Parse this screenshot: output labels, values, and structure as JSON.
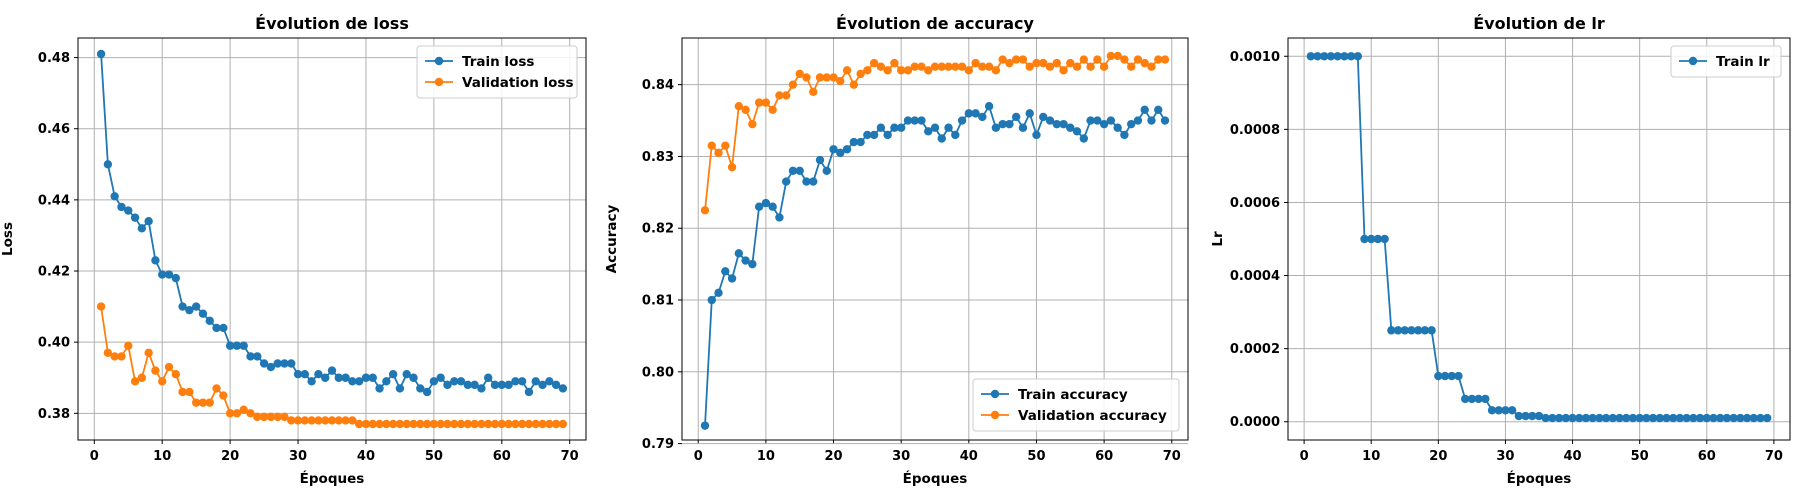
{
  "chart_data": [
    {
      "type": "line",
      "title": "Évolution de loss",
      "xlabel": "Époques",
      "ylabel": "Loss",
      "xlim": [
        -2.4,
        72.4
      ],
      "ylim": [
        0.3725,
        0.4855
      ],
      "xticks": [
        0,
        10,
        20,
        30,
        40,
        50,
        60,
        70
      ],
      "yticks": [
        0.38,
        0.4,
        0.42,
        0.44,
        0.46,
        0.48
      ],
      "ytick_labels": [
        "0.38",
        "0.40",
        "0.42",
        "0.44",
        "0.46",
        "0.48"
      ],
      "grid": true,
      "legend_position": "top-right",
      "x": [
        1,
        2,
        3,
        4,
        5,
        6,
        7,
        8,
        9,
        10,
        11,
        12,
        13,
        14,
        15,
        16,
        17,
        18,
        19,
        20,
        21,
        22,
        23,
        24,
        25,
        26,
        27,
        28,
        29,
        30,
        31,
        32,
        33,
        34,
        35,
        36,
        37,
        38,
        39,
        40,
        41,
        42,
        43,
        44,
        45,
        46,
        47,
        48,
        49,
        50,
        51,
        52,
        53,
        54,
        55,
        56,
        57,
        58,
        59,
        60,
        61,
        62,
        63,
        64,
        65,
        66,
        67,
        68,
        69
      ],
      "series": [
        {
          "name": "Train loss",
          "color": "#1f77b4",
          "values": [
            0.481,
            0.45,
            0.441,
            0.438,
            0.437,
            0.435,
            0.432,
            0.434,
            0.423,
            0.419,
            0.419,
            0.418,
            0.41,
            0.409,
            0.41,
            0.408,
            0.406,
            0.404,
            0.404,
            0.399,
            0.399,
            0.399,
            0.396,
            0.396,
            0.394,
            0.393,
            0.394,
            0.394,
            0.394,
            0.391,
            0.391,
            0.389,
            0.391,
            0.39,
            0.392,
            0.39,
            0.39,
            0.389,
            0.389,
            0.39,
            0.39,
            0.387,
            0.389,
            0.391,
            0.387,
            0.391,
            0.39,
            0.387,
            0.386,
            0.389,
            0.39,
            0.388,
            0.389,
            0.389,
            0.388,
            0.388,
            0.387,
            0.39,
            0.388,
            0.388,
            0.388,
            0.389,
            0.389,
            0.386,
            0.389,
            0.388,
            0.389,
            0.388,
            0.387
          ]
        },
        {
          "name": "Validation loss",
          "color": "#ff7f0e",
          "values": [
            0.41,
            0.397,
            0.396,
            0.396,
            0.399,
            0.389,
            0.39,
            0.397,
            0.392,
            0.389,
            0.393,
            0.391,
            0.386,
            0.386,
            0.383,
            0.383,
            0.383,
            0.387,
            0.385,
            0.38,
            0.38,
            0.381,
            0.38,
            0.379,
            0.379,
            0.379,
            0.379,
            0.379,
            0.378,
            0.378,
            0.378,
            0.378,
            0.378,
            0.378,
            0.378,
            0.378,
            0.378,
            0.378,
            0.377,
            0.377,
            0.377,
            0.377,
            0.377,
            0.377,
            0.377,
            0.377,
            0.377,
            0.377,
            0.377,
            0.377,
            0.377,
            0.377,
            0.377,
            0.377,
            0.377,
            0.377,
            0.377,
            0.377,
            0.377,
            0.377,
            0.377,
            0.377,
            0.377,
            0.377,
            0.377,
            0.377,
            0.377,
            0.377,
            0.377
          ]
        }
      ]
    },
    {
      "type": "line",
      "title": "Évolution de accuracy",
      "xlabel": "Époques",
      "ylabel": "Accuracy",
      "xlim": [
        -2.4,
        72.4
      ],
      "ylim": [
        0.7905,
        0.8465
      ],
      "xticks": [
        0,
        10,
        20,
        30,
        40,
        50,
        60,
        70
      ],
      "yticks": [
        0.79,
        0.8,
        0.81,
        0.82,
        0.83,
        0.84
      ],
      "ytick_labels": [
        "0.79",
        "0.80",
        "0.81",
        "0.82",
        "0.83",
        "0.84"
      ],
      "grid": true,
      "legend_position": "bottom-right",
      "x": [
        1,
        2,
        3,
        4,
        5,
        6,
        7,
        8,
        9,
        10,
        11,
        12,
        13,
        14,
        15,
        16,
        17,
        18,
        19,
        20,
        21,
        22,
        23,
        24,
        25,
        26,
        27,
        28,
        29,
        30,
        31,
        32,
        33,
        34,
        35,
        36,
        37,
        38,
        39,
        40,
        41,
        42,
        43,
        44,
        45,
        46,
        47,
        48,
        49,
        50,
        51,
        52,
        53,
        54,
        55,
        56,
        57,
        58,
        59,
        60,
        61,
        62,
        63,
        64,
        65,
        66,
        67,
        68,
        69
      ],
      "series": [
        {
          "name": "Train accuracy",
          "color": "#1f77b4",
          "values": [
            0.7925,
            0.81,
            0.811,
            0.814,
            0.813,
            0.8165,
            0.8155,
            0.815,
            0.823,
            0.8235,
            0.823,
            0.8215,
            0.8265,
            0.828,
            0.828,
            0.8265,
            0.8265,
            0.8295,
            0.828,
            0.831,
            0.8305,
            0.831,
            0.832,
            0.832,
            0.833,
            0.833,
            0.834,
            0.833,
            0.834,
            0.834,
            0.835,
            0.835,
            0.835,
            0.8335,
            0.834,
            0.8325,
            0.834,
            0.833,
            0.835,
            0.836,
            0.836,
            0.8355,
            0.837,
            0.834,
            0.8345,
            0.8345,
            0.8355,
            0.834,
            0.836,
            0.833,
            0.8355,
            0.835,
            0.8345,
            0.8345,
            0.834,
            0.8335,
            0.8325,
            0.835,
            0.835,
            0.8345,
            0.835,
            0.834,
            0.833,
            0.8345,
            0.835,
            0.8365,
            0.835,
            0.8365,
            0.835
          ]
        },
        {
          "name": "Validation accuracy",
          "color": "#ff7f0e",
          "values": [
            0.8225,
            0.8315,
            0.8305,
            0.8315,
            0.8285,
            0.837,
            0.8365,
            0.8345,
            0.8375,
            0.8375,
            0.8365,
            0.8385,
            0.8385,
            0.84,
            0.8415,
            0.841,
            0.839,
            0.841,
            0.841,
            0.841,
            0.8405,
            0.842,
            0.84,
            0.8415,
            0.842,
            0.843,
            0.8425,
            0.842,
            0.843,
            0.842,
            0.842,
            0.8425,
            0.8425,
            0.842,
            0.8425,
            0.8425,
            0.8425,
            0.8425,
            0.8425,
            0.842,
            0.843,
            0.8425,
            0.8425,
            0.842,
            0.8435,
            0.843,
            0.8435,
            0.8435,
            0.8425,
            0.843,
            0.843,
            0.8425,
            0.843,
            0.842,
            0.843,
            0.8425,
            0.8435,
            0.8425,
            0.8435,
            0.8425,
            0.844,
            0.844,
            0.8435,
            0.8425,
            0.8435,
            0.843,
            0.8425,
            0.8435,
            0.8435
          ]
        }
      ]
    },
    {
      "type": "line",
      "title": "Évolution de lr",
      "xlabel": "Époques",
      "ylabel": "Lr",
      "xlim": [
        -2.4,
        72.4
      ],
      "ylim": [
        -5e-05,
        0.00105
      ],
      "xticks": [
        0,
        10,
        20,
        30,
        40,
        50,
        60,
        70
      ],
      "yticks": [
        0,
        0.0002,
        0.0004,
        0.0006,
        0.0008,
        0.001
      ],
      "ytick_labels": [
        "0.0000",
        "0.0002",
        "0.0004",
        "0.0006",
        "0.0008",
        "0.0010"
      ],
      "grid": true,
      "legend_position": "top-right",
      "x": [
        1,
        2,
        3,
        4,
        5,
        6,
        7,
        8,
        9,
        10,
        11,
        12,
        13,
        14,
        15,
        16,
        17,
        18,
        19,
        20,
        21,
        22,
        23,
        24,
        25,
        26,
        27,
        28,
        29,
        30,
        31,
        32,
        33,
        34,
        35,
        36,
        37,
        38,
        39,
        40,
        41,
        42,
        43,
        44,
        45,
        46,
        47,
        48,
        49,
        50,
        51,
        52,
        53,
        54,
        55,
        56,
        57,
        58,
        59,
        60,
        61,
        62,
        63,
        64,
        65,
        66,
        67,
        68,
        69
      ],
      "series": [
        {
          "name": "Train lr",
          "color": "#1f77b4",
          "values": [
            0.001,
            0.001,
            0.001,
            0.001,
            0.001,
            0.001,
            0.001,
            0.001,
            0.0005,
            0.0005,
            0.0005,
            0.0005,
            0.00025,
            0.00025,
            0.00025,
            0.00025,
            0.00025,
            0.00025,
            0.00025,
            0.000125,
            0.000125,
            0.000125,
            0.000125,
            6.25e-05,
            6.25e-05,
            6.25e-05,
            6.25e-05,
            3.125e-05,
            3.125e-05,
            3.125e-05,
            3.125e-05,
            1.5625e-05,
            1.5625e-05,
            1.5625e-05,
            1.5625e-05,
            1e-05,
            1e-05,
            1e-05,
            1e-05,
            1e-05,
            1e-05,
            1e-05,
            1e-05,
            1e-05,
            1e-05,
            1e-05,
            1e-05,
            1e-05,
            1e-05,
            1e-05,
            1e-05,
            1e-05,
            1e-05,
            1e-05,
            1e-05,
            1e-05,
            1e-05,
            1e-05,
            1e-05,
            1e-05,
            1e-05,
            1e-05,
            1e-05,
            1e-05,
            1e-05,
            1e-05,
            1e-05,
            1e-05,
            1e-05
          ]
        }
      ]
    }
  ]
}
